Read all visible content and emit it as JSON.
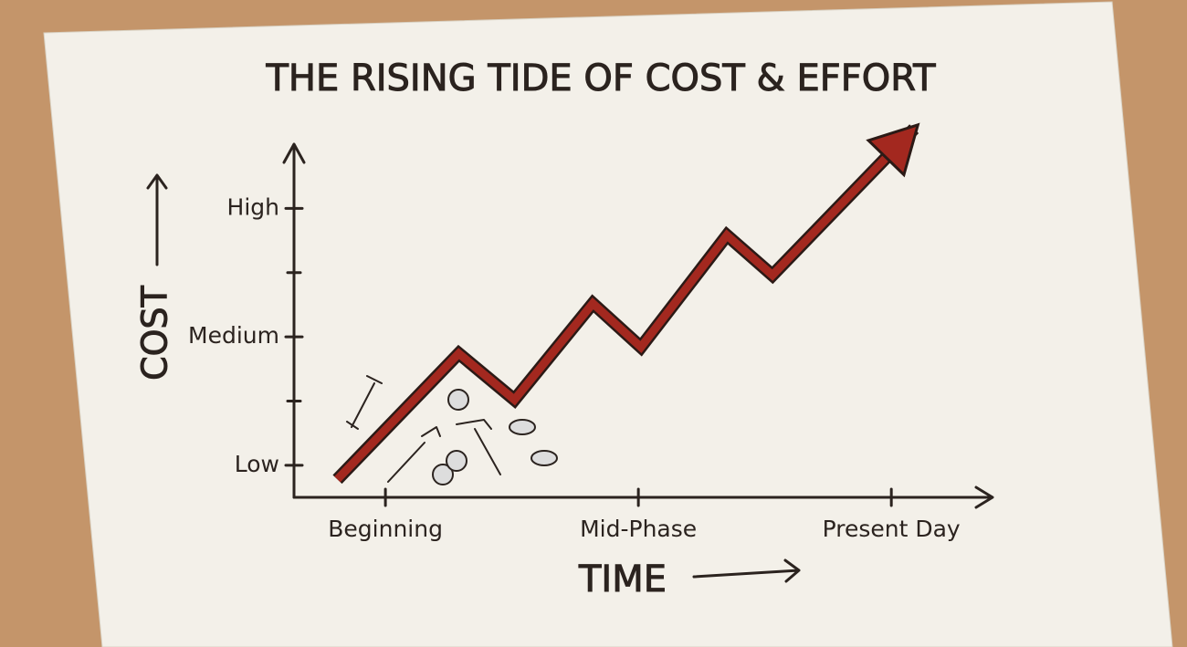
{
  "chart_data": {
    "type": "line",
    "title": "THE RISING TIDE OF COST & EFFORT",
    "x_label": "TIME",
    "y_label": "COST",
    "xlim": [
      -0.3,
      2.4
    ],
    "xticks": [
      {
        "value": 0,
        "label": "Beginning"
      },
      {
        "value": 1,
        "label": "Mid-Phase"
      },
      {
        "value": 2,
        "label": "Present Day"
      }
    ],
    "ylim": [
      0.75,
      3.5
    ],
    "yticks": [
      {
        "value": 1,
        "label": "Low"
      },
      {
        "value": 2,
        "label": "Medium"
      },
      {
        "value": 3,
        "label": "High"
      }
    ],
    "yminorticks": [
      1.5,
      2.5
    ],
    "series": [
      {
        "color": "#a3281f",
        "x": [
          -0.19,
          0.29,
          0.51,
          0.82,
          1.01,
          1.35,
          1.53,
          2.09
        ],
        "values": [
          0.89,
          1.87,
          1.51,
          2.26,
          1.92,
          2.79,
          2.48,
          3.62
        ]
      }
    ]
  }
}
